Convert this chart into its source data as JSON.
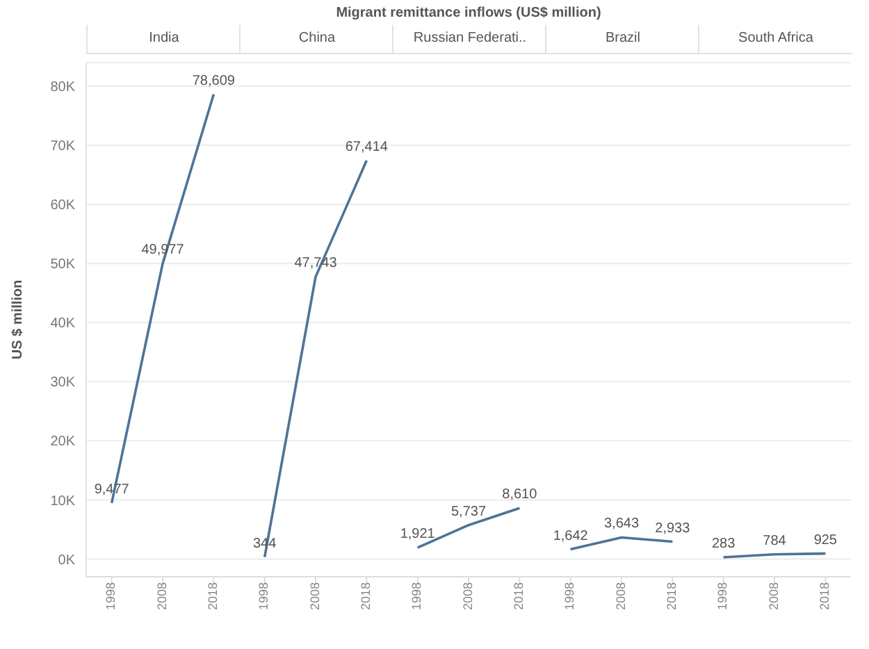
{
  "chart_data": [
    {
      "type": "other",
      "title": "Migrant remittance inflows (US$ million)"
    },
    {
      "type": "line",
      "title": "India",
      "ylabel": "US $ million",
      "categories": [
        "1998",
        "2008",
        "2018"
      ],
      "series": [
        {
          "color": "#4f7396",
          "values": [
            9477,
            49977,
            78609
          ],
          "value_labels": [
            "9,477",
            "49,977",
            "78,609"
          ]
        }
      ],
      "ylim": [
        -3000,
        84000
      ],
      "yticks": [
        {
          "value": 0,
          "label": "0K"
        },
        {
          "value": 10000,
          "label": "10K"
        },
        {
          "value": 20000,
          "label": "20K"
        },
        {
          "value": 30000,
          "label": "30K"
        },
        {
          "value": 40000,
          "label": "40K"
        },
        {
          "value": 50000,
          "label": "50K"
        },
        {
          "value": 60000,
          "label": "60K"
        },
        {
          "value": 70000,
          "label": "70K"
        },
        {
          "value": 80000,
          "label": "80K"
        }
      ],
      "grid": "y"
    },
    {
      "type": "line",
      "title": "China",
      "categories": [
        "1998",
        "2008",
        "2018"
      ],
      "series": [
        {
          "color": "#4f7396",
          "values": [
            344,
            47743,
            67414
          ],
          "value_labels": [
            "344",
            "47,743",
            "67,414"
          ]
        }
      ],
      "ylim": [
        -3000,
        84000
      ],
      "grid": "y",
      "tick_labels": "x"
    },
    {
      "type": "line",
      "title": "Russian Federati..",
      "categories": [
        "1998",
        "2008",
        "2018"
      ],
      "series": [
        {
          "color": "#4f7396",
          "values": [
            1921,
            5737,
            8610
          ],
          "value_labels": [
            "1,921",
            "5,737",
            "8,610"
          ]
        }
      ],
      "ylim": [
        -3000,
        84000
      ],
      "grid": "y",
      "tick_labels": "x"
    },
    {
      "type": "line",
      "title": "Brazil",
      "categories": [
        "1998",
        "2008",
        "2018"
      ],
      "series": [
        {
          "color": "#4f7396",
          "values": [
            1642,
            3643,
            2933
          ],
          "value_labels": [
            "1,642",
            "3,643",
            "2,933"
          ]
        }
      ],
      "ylim": [
        -3000,
        84000
      ],
      "grid": "y",
      "tick_labels": "x"
    },
    {
      "type": "line",
      "title": "South Africa",
      "categories": [
        "1998",
        "2008",
        "2018"
      ],
      "series": [
        {
          "color": "#4f7396",
          "values": [
            283,
            784,
            925
          ],
          "value_labels": [
            "283",
            "784",
            "925"
          ]
        }
      ],
      "ylim": [
        -3000,
        84000
      ],
      "grid": "y",
      "tick_labels": "x"
    }
  ]
}
